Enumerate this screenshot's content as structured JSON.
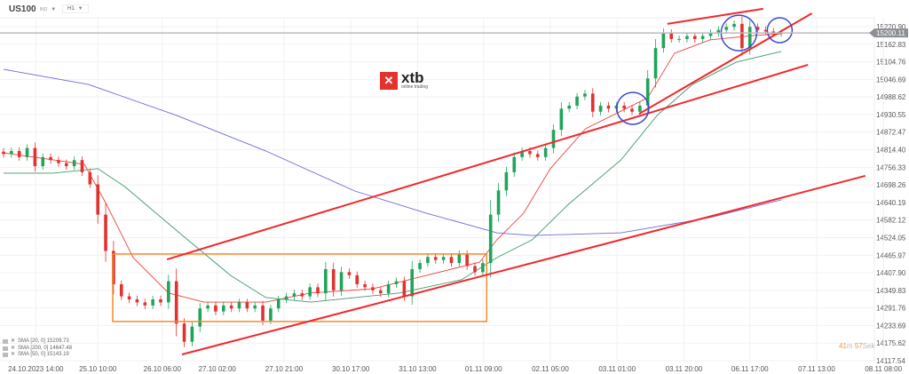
{
  "header": {
    "symbol": "US100",
    "symbol_tag": "IND",
    "timeframe": "H1"
  },
  "logo": {
    "brand": "xtb",
    "tagline": "online trading"
  },
  "legend": [
    {
      "label": "SMA [20, 0] 15209.73",
      "color": "#e8453c"
    },
    {
      "label": "SMA [200, 0] 14647.48",
      "color": "#6b6bd6"
    },
    {
      "label": "SMA [50, 0] 15143.19",
      "color": "#3e9a6a"
    }
  ],
  "timer": {
    "minutes": "41",
    "m_unit": "m",
    "seconds": "57",
    "s_unit": "Sek"
  },
  "colors": {
    "up": "#20a45b",
    "down": "#e0322f",
    "trend": "#f0282d",
    "box": "#f58a2a",
    "circle": "#3a4ad0",
    "sma20": "#e8453c",
    "sma50": "#3e9a6a",
    "sma200": "#6b6bd6"
  },
  "chart_data": {
    "type": "candlestick",
    "instrument": "US100",
    "timeframe": "H1",
    "ylim": [
      14117.54,
      15220.9
    ],
    "yticks": [
      "15220.90",
      "15162.83",
      "15104.76",
      "15046.69",
      "14988.62",
      "14930.55",
      "14872.47",
      "14814.40",
      "14756.33",
      "14698.26",
      "14640.19",
      "14582.12",
      "14524.05",
      "14465.97",
      "14407.90",
      "14349.83",
      "14291.76",
      "14233.69",
      "14175.62",
      "14117.54"
    ],
    "current_price": "15200.11",
    "xticks": [
      {
        "label": "24.10.2023  14:00",
        "index": 4.1
      },
      {
        "label": "25.10  10:00",
        "index": 12
      },
      {
        "label": "26.10  06:00",
        "index": 20.2
      },
      {
        "label": "27.10  02:00",
        "index": 27.2
      },
      {
        "label": "27.10  21:00",
        "index": 35.7
      },
      {
        "label": "30.10  17:00",
        "index": 44.2
      },
      {
        "label": "31.10  13:00",
        "index": 52.7
      },
      {
        "label": "01.11  09:00",
        "index": 61.1
      },
      {
        "label": "02.11  05:00",
        "index": 69.6
      },
      {
        "label": "03.11  01:00",
        "index": 78.1
      },
      {
        "label": "03.11  20:00",
        "index": 86.6
      },
      {
        "label": "06.11  17:00",
        "index": 95
      },
      {
        "label": "07.11  13:00",
        "index": 103.5
      },
      {
        "label": "08.11  08:00",
        "index": 112
      }
    ],
    "closes": [
      14800,
      14810,
      14790,
      14820,
      14760,
      14790,
      14780,
      14770,
      14760,
      14780,
      14740,
      14700,
      14600,
      14480,
      14370,
      14330,
      14320,
      14310,
      14300,
      14320,
      14310,
      14380,
      14240,
      14180,
      14230,
      14290,
      14300,
      14280,
      14300,
      14290,
      14310,
      14290,
      14300,
      14250,
      14290,
      14320,
      14330,
      14340,
      14330,
      14360,
      14340,
      14420,
      14350,
      14410,
      14400,
      14370,
      14360,
      14350,
      14340,
      14370,
      14380,
      14330,
      14420,
      14440,
      14460,
      14450,
      14460,
      14440,
      14470,
      14430,
      14410,
      14440,
      14600,
      14680,
      14740,
      14790,
      14810,
      14800,
      14790,
      14820,
      14880,
      14950,
      14960,
      14990,
      15000,
      14940,
      14960,
      14950,
      14960,
      14950,
      14940,
      14960,
      15050,
      15150,
      15200,
      15180,
      15180,
      15190,
      15180,
      15190,
      15200,
      15210,
      15220,
      15230,
      15150,
      15220,
      15210,
      15205,
      15200,
      15200
    ],
    "series": [
      {
        "name": "SMA [20, 0]",
        "points": [
          [
            0,
            14804
          ],
          [
            6.3,
            14781
          ],
          [
            10.3,
            14766
          ],
          [
            13.1,
            14634
          ],
          [
            16.5,
            14458
          ],
          [
            21,
            14341
          ],
          [
            25.5,
            14311
          ],
          [
            33.4,
            14311
          ],
          [
            39.1,
            14341
          ],
          [
            47,
            14355
          ],
          [
            53.8,
            14399
          ],
          [
            60.6,
            14443
          ],
          [
            62.8,
            14517
          ],
          [
            66.2,
            14605
          ],
          [
            69.6,
            14752
          ],
          [
            74.1,
            14884
          ],
          [
            78.6,
            14942
          ],
          [
            82,
            14986
          ],
          [
            85.4,
            15133
          ],
          [
            89.9,
            15177
          ],
          [
            95.6,
            15192
          ],
          [
            99,
            15197
          ]
        ]
      },
      {
        "name": "SMA [50, 0]",
        "points": [
          [
            0,
            14737
          ],
          [
            6.3,
            14737
          ],
          [
            12,
            14752
          ],
          [
            15.4,
            14693
          ],
          [
            22.1,
            14546
          ],
          [
            28.9,
            14399
          ],
          [
            33.4,
            14326
          ],
          [
            39.1,
            14311
          ],
          [
            50.4,
            14341
          ],
          [
            58.3,
            14385
          ],
          [
            62.8,
            14458
          ],
          [
            67.3,
            14517
          ],
          [
            71.9,
            14634
          ],
          [
            78.6,
            14781
          ],
          [
            83.2,
            14928
          ],
          [
            87.7,
            15030
          ],
          [
            93.3,
            15104
          ],
          [
            99,
            15139
          ]
        ]
      },
      {
        "name": "SMA [200, 0]",
        "points": [
          [
            0,
            15080
          ],
          [
            10.8,
            15030
          ],
          [
            22.1,
            14927
          ],
          [
            33.4,
            14810
          ],
          [
            44.7,
            14678
          ],
          [
            53.8,
            14605
          ],
          [
            62.8,
            14540
          ],
          [
            67.3,
            14531
          ],
          [
            78.6,
            14540
          ],
          [
            89.9,
            14590
          ],
          [
            99,
            14649
          ]
        ]
      }
    ],
    "annotations": {
      "rectangle": {
        "from": [
          13.9,
          14470
        ],
        "to": [
          61.5,
          14247
        ]
      },
      "trendlines": [
        {
          "from": [
            20.8,
            14452
          ],
          "to": [
            102.4,
            15095
          ]
        },
        {
          "from": [
            22.7,
            14138
          ],
          "to": [
            109.7,
            14728
          ]
        },
        {
          "from": [
            80.9,
            14933
          ],
          "to": [
            102.9,
            15265
          ]
        },
        {
          "from": [
            84.5,
            15230
          ],
          "to": [
            96.7,
            15280
          ]
        }
      ],
      "circles": [
        [
          80.1,
          14951
        ],
        [
          93.6,
          15200
        ],
        [
          98.8,
          15209
        ]
      ]
    }
  }
}
